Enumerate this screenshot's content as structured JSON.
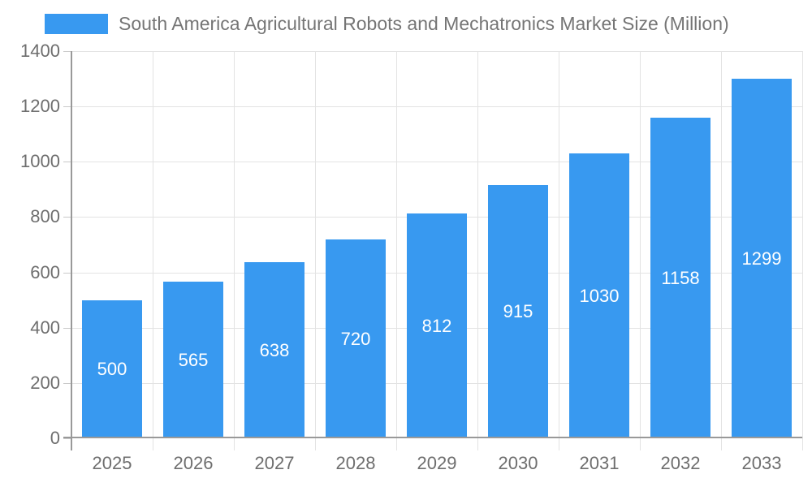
{
  "legend": {
    "label": "South America Agricultural Robots and Mechatronics Market Size (Million)"
  },
  "chart_data": {
    "type": "bar",
    "title": "South America Agricultural Robots and Mechatronics Market Size (Million)",
    "categories": [
      "2025",
      "2026",
      "2027",
      "2028",
      "2029",
      "2030",
      "2031",
      "2032",
      "2033"
    ],
    "values": [
      500,
      565,
      638,
      720,
      812,
      915,
      1030,
      1158,
      1299
    ],
    "data_labels": [
      "500",
      "565",
      "638",
      "720",
      "812",
      "915",
      "1030",
      "1158",
      "1299"
    ],
    "series": [
      {
        "name": "South America Agricultural Robots and Mechatronics Market Size (Million)",
        "values": [
          500,
          565,
          638,
          720,
          812,
          915,
          1030,
          1158,
          1299
        ]
      }
    ],
    "xlabel": "",
    "ylabel": "",
    "ylim": [
      0,
      1400
    ],
    "yticks": [
      0,
      200,
      400,
      600,
      800,
      1000,
      1200,
      1400
    ],
    "grid": true,
    "legend_position": "top-left",
    "bar_color": "#3899f0",
    "data_label_color": "#ffffff",
    "title_color": "#757575",
    "axis_text_color": "#6e6e6e",
    "axis_line_color": "#999999",
    "grid_line_color": "#e3e3e3",
    "tick_color": "#c9c9c9",
    "background_color": "#ffffff"
  }
}
